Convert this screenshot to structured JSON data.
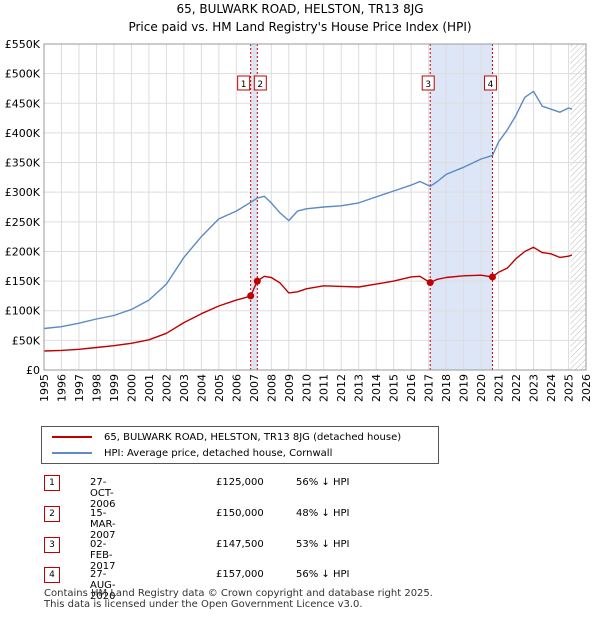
{
  "title": "65, BULWARK ROAD, HELSTON, TR13 8JG",
  "subtitle": "Price paid vs. HM Land Registry's House Price Index (HPI)",
  "colors": {
    "property": "#c00000",
    "hpi": "#5b8ac6",
    "shade": "#dde6f7",
    "marker_line": "#c00000"
  },
  "chart_data": {
    "type": "line",
    "title": "65, BULWARK ROAD, HELSTON, TR13 8JG",
    "subtitle": "Price paid vs. HM Land Registry's House Price Index (HPI)",
    "xlim": [
      1995,
      2026
    ],
    "ylim": [
      0,
      550000
    ],
    "x_ticks": [
      1995,
      1996,
      1997,
      1998,
      1999,
      2000,
      2001,
      2002,
      2003,
      2004,
      2005,
      2006,
      2007,
      2008,
      2009,
      2010,
      2011,
      2012,
      2013,
      2014,
      2015,
      2016,
      2017,
      2018,
      2019,
      2020,
      2021,
      2022,
      2023,
      2024,
      2025,
      2026
    ],
    "x_tick_labels": [
      "1995",
      "1996",
      "1997",
      "1998",
      "1999",
      "2000",
      "2001",
      "2002",
      "2003",
      "2004",
      "2005",
      "2006",
      "2007",
      "2008",
      "2009",
      "2010",
      "2011",
      "2012",
      "2013",
      "2014",
      "2015",
      "2016",
      "2017",
      "2018",
      "2019",
      "2020",
      "2021",
      "2022",
      "2023",
      "2024",
      "2025",
      "2026"
    ],
    "y_ticks": [
      0,
      50000,
      100000,
      150000,
      200000,
      250000,
      300000,
      350000,
      400000,
      450000,
      500000,
      550000
    ],
    "y_tick_labels": [
      "£0",
      "£50K",
      "£100K",
      "£150K",
      "£200K",
      "£250K",
      "£300K",
      "£350K",
      "£400K",
      "£450K",
      "£500K",
      "£550K"
    ],
    "grid": true,
    "shaded_ranges": [
      [
        2006.82,
        2007.2
      ],
      [
        2017.09,
        2020.65
      ]
    ],
    "forecast_start": 2025.1,
    "series": [
      {
        "name": "65, BULWARK ROAD, HELSTON, TR13 8JG (detached house)",
        "color": "#c00000",
        "x": [
          1995,
          1996,
          1997,
          1998,
          1999,
          2000,
          2001,
          2002,
          2003,
          2004,
          2005,
          2006,
          2006.5,
          2006.82,
          2007.2,
          2007.6,
          2008,
          2008.5,
          2009,
          2009.5,
          2010,
          2011,
          2012,
          2013,
          2014,
          2015,
          2016,
          2016.5,
          2017.09,
          2017.5,
          2018,
          2019,
          2020,
          2020.65,
          2021,
          2021.5,
          2022,
          2022.5,
          2023,
          2023.5,
          2024,
          2024.5,
          2025,
          2025.2
        ],
        "values": [
          32000,
          33000,
          35000,
          38000,
          41000,
          45000,
          51000,
          62000,
          80000,
          95000,
          108000,
          118000,
          122000,
          125000,
          150000,
          158000,
          156000,
          147000,
          130000,
          132000,
          137000,
          142000,
          141000,
          140000,
          145000,
          150000,
          157000,
          158000,
          147500,
          153000,
          156000,
          159000,
          160000,
          157000,
          165000,
          172000,
          188000,
          200000,
          207000,
          198000,
          196000,
          190000,
          192000,
          194000
        ]
      },
      {
        "name": "HPI: Average price, detached house, Cornwall",
        "color": "#5b8ac6",
        "x": [
          1995,
          1996,
          1997,
          1998,
          1999,
          2000,
          2001,
          2002,
          2003,
          2004,
          2005,
          2006,
          2006.82,
          2007.2,
          2007.6,
          2008,
          2008.5,
          2009,
          2009.5,
          2010,
          2011,
          2012,
          2013,
          2014,
          2015,
          2016,
          2016.5,
          2017.09,
          2017.5,
          2018,
          2019,
          2020,
          2020.65,
          2021,
          2021.5,
          2022,
          2022.5,
          2023,
          2023.5,
          2024,
          2024.5,
          2025,
          2025.2
        ],
        "values": [
          70000,
          73000,
          79000,
          86000,
          92000,
          102000,
          118000,
          145000,
          190000,
          225000,
          255000,
          268000,
          283000,
          290000,
          293000,
          282000,
          265000,
          252000,
          268000,
          272000,
          275000,
          277000,
          282000,
          292000,
          302000,
          312000,
          318000,
          310000,
          318000,
          330000,
          342000,
          356000,
          362000,
          385000,
          405000,
          430000,
          460000,
          470000,
          445000,
          440000,
          435000,
          442000,
          440000
        ]
      }
    ],
    "markers": [
      {
        "label": "1",
        "x": 2006.82,
        "value": 125000,
        "show_dot": true
      },
      {
        "label": "2",
        "x": 2007.2,
        "value": 150000,
        "show_dot": true
      },
      {
        "label": "3",
        "x": 2017.09,
        "value": 147500,
        "show_dot": true
      },
      {
        "label": "4",
        "x": 2020.65,
        "value": 157000,
        "show_dot": true
      }
    ]
  },
  "legend": {
    "items": [
      {
        "label": "65, BULWARK ROAD, HELSTON, TR13 8JG (detached house)",
        "color": "#c00000"
      },
      {
        "label": "HPI: Average price, detached house, Cornwall",
        "color": "#5b8ac6"
      }
    ]
  },
  "transactions": [
    {
      "num": "1",
      "date": "27-OCT-2006",
      "price": "£125,000",
      "hpi": "56% ↓ HPI"
    },
    {
      "num": "2",
      "date": "15-MAR-2007",
      "price": "£150,000",
      "hpi": "48% ↓ HPI"
    },
    {
      "num": "3",
      "date": "02-FEB-2017",
      "price": "£147,500",
      "hpi": "53% ↓ HPI"
    },
    {
      "num": "4",
      "date": "27-AUG-2020",
      "price": "£157,000",
      "hpi": "56% ↓ HPI"
    }
  ],
  "footer": {
    "line1": "Contains HM Land Registry data © Crown copyright and database right 2025.",
    "line2": "This data is licensed under the Open Government Licence v3.0."
  }
}
